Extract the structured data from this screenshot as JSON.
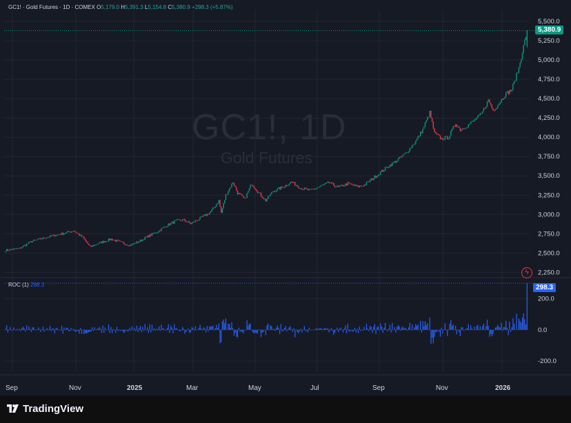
{
  "legend": {
    "symbol": "GC1! · Gold Futures · 1D · COMEX",
    "o_label": "O",
    "o_value": "5,179.0",
    "h_label": "H",
    "h_value": "5,391.3",
    "l_label": "L",
    "l_value": "5,154.8",
    "c_label": "C",
    "c_value": "5,380.9",
    "change": "+298.3 (+5.87%)"
  },
  "watermark": {
    "ticker": "GC1!, 1D",
    "name": "Gold Futures"
  },
  "roc_legend": {
    "label": "ROC (1)",
    "value": "298.3"
  },
  "badges": {
    "price": "5,380.9",
    "roc": "298.3"
  },
  "footer": {
    "brand": "TradingView"
  },
  "colors": {
    "up": "#089981",
    "down": "#f23645",
    "roc": "#2962ff",
    "bg": "#161a25",
    "grid": "#232631"
  },
  "chart_data": {
    "type": "candlestick",
    "price_axis": {
      "ticks": [
        2250,
        2500,
        2750,
        3000,
        3250,
        3500,
        3750,
        4000,
        4250,
        4500,
        4750,
        5000,
        5250,
        5500
      ],
      "tick_labels": [
        "2,250.0",
        "2,500.0",
        "2,750.0",
        "3,000.0",
        "3,250.0",
        "3,500.0",
        "3,750.0",
        "4,000.0",
        "4,250.0",
        "4,500.0",
        "4,750.0",
        "5,000.0",
        "5,250.0",
        "5,500.0"
      ],
      "range": [
        2190,
        5600
      ]
    },
    "roc_axis": {
      "ticks": [
        -200,
        0,
        200
      ],
      "tick_labels": [
        "-200.0",
        "0.0",
        "200.0"
      ],
      "range": [
        -270,
        330
      ]
    },
    "time_labels": [
      "Sep",
      "Nov",
      "2025",
      "Mar",
      "May",
      "Jul",
      "Sep",
      "Nov",
      "2026"
    ],
    "time_label_bold": [
      false,
      false,
      true,
      false,
      false,
      false,
      false,
      false,
      true
    ],
    "anchors": [
      [
        0,
        2535
      ],
      [
        12,
        2560
      ],
      [
        22,
        2650
      ],
      [
        34,
        2700
      ],
      [
        48,
        2750
      ],
      [
        58,
        2790
      ],
      [
        66,
        2700
      ],
      [
        72,
        2580
      ],
      [
        80,
        2630
      ],
      [
        90,
        2680
      ],
      [
        98,
        2640
      ],
      [
        106,
        2600
      ],
      [
        114,
        2650
      ],
      [
        122,
        2720
      ],
      [
        130,
        2780
      ],
      [
        138,
        2860
      ],
      [
        146,
        2920
      ],
      [
        152,
        2930
      ],
      [
        158,
        2880
      ],
      [
        166,
        2950
      ],
      [
        174,
        3020
      ],
      [
        178,
        3090
      ],
      [
        182,
        3180
      ],
      [
        184,
        3020
      ],
      [
        188,
        3250
      ],
      [
        194,
        3420
      ],
      [
        198,
        3280
      ],
      [
        204,
        3200
      ],
      [
        210,
        3400
      ],
      [
        216,
        3280
      ],
      [
        222,
        3180
      ],
      [
        228,
        3300
      ],
      [
        236,
        3350
      ],
      [
        244,
        3420
      ],
      [
        252,
        3340
      ],
      [
        260,
        3310
      ],
      [
        268,
        3360
      ],
      [
        276,
        3410
      ],
      [
        284,
        3350
      ],
      [
        292,
        3400
      ],
      [
        300,
        3360
      ],
      [
        306,
        3380
      ],
      [
        312,
        3450
      ],
      [
        318,
        3520
      ],
      [
        326,
        3620
      ],
      [
        334,
        3700
      ],
      [
        342,
        3800
      ],
      [
        350,
        3950
      ],
      [
        356,
        4100
      ],
      [
        362,
        4320
      ],
      [
        366,
        4050
      ],
      [
        372,
        3980
      ],
      [
        378,
        4000
      ],
      [
        384,
        4180
      ],
      [
        388,
        4100
      ],
      [
        394,
        4150
      ],
      [
        400,
        4220
      ],
      [
        406,
        4300
      ],
      [
        412,
        4480
      ],
      [
        416,
        4350
      ],
      [
        420,
        4420
      ],
      [
        426,
        4550
      ],
      [
        432,
        4620
      ],
      [
        438,
        4900
      ],
      [
        442,
        5180
      ],
      [
        445,
        5380.9
      ]
    ],
    "last_candle": {
      "open": 5179.0,
      "high": 5391.3,
      "low": 5154.8,
      "close": 5380.9
    },
    "roc_last": 298.3
  }
}
